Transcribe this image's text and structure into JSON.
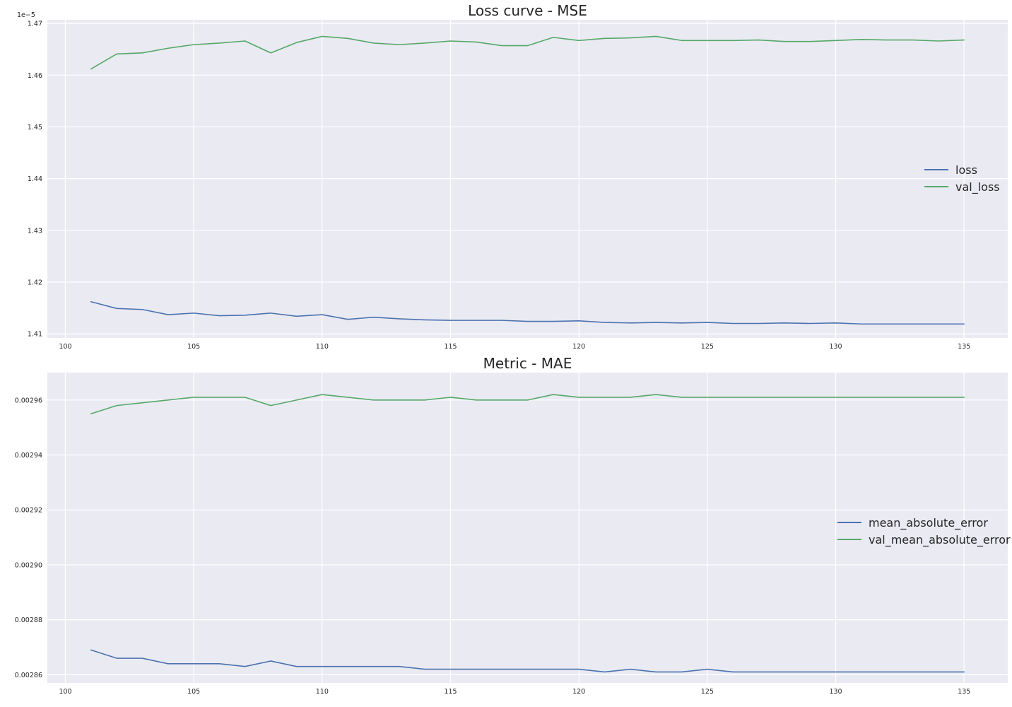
{
  "colors": {
    "loss": "#4c72b0",
    "val": "#55a868",
    "plot_bg": "#eaeaf2",
    "grid": "#ffffff"
  },
  "chart_data": [
    {
      "type": "line",
      "title": "Loss curve - MSE",
      "xlabel": "",
      "ylabel": "",
      "offset_label": "1e−5",
      "xlim": [
        99.3,
        136.7
      ],
      "ylim": [
        1.4092,
        1.4707
      ],
      "x_ticks": [
        100,
        105,
        110,
        115,
        120,
        125,
        130,
        135
      ],
      "y_ticks": [
        1.41,
        1.42,
        1.43,
        1.44,
        1.45,
        1.46,
        1.47
      ],
      "y_tick_labels": [
        "1.41",
        "1.42",
        "1.43",
        "1.44",
        "1.45",
        "1.46",
        "1.47"
      ],
      "grid": true,
      "legend_position": "center-right",
      "x": [
        101,
        102,
        103,
        104,
        105,
        106,
        107,
        108,
        109,
        110,
        111,
        112,
        113,
        114,
        115,
        116,
        117,
        118,
        119,
        120,
        121,
        122,
        123,
        124,
        125,
        126,
        127,
        128,
        129,
        130,
        131,
        132,
        133,
        134,
        135
      ],
      "series": [
        {
          "name": "loss",
          "color_key": "loss",
          "values": [
            1.4162,
            1.4149,
            1.4147,
            1.4137,
            1.414,
            1.4135,
            1.4136,
            1.414,
            1.4134,
            1.4137,
            1.4128,
            1.4132,
            1.4129,
            1.4127,
            1.4126,
            1.4126,
            1.4126,
            1.4124,
            1.4124,
            1.4125,
            1.4122,
            1.4121,
            1.4122,
            1.4121,
            1.4122,
            1.412,
            1.412,
            1.4121,
            1.412,
            1.4121,
            1.4119,
            1.4119,
            1.4119,
            1.4119,
            1.4119
          ]
        },
        {
          "name": "val_loss",
          "color_key": "val",
          "values": [
            1.4612,
            1.4641,
            1.4643,
            1.4652,
            1.4659,
            1.4662,
            1.4666,
            1.4643,
            1.4663,
            1.4675,
            1.4671,
            1.4662,
            1.4659,
            1.4662,
            1.4666,
            1.4664,
            1.4657,
            1.4657,
            1.4673,
            1.4667,
            1.4671,
            1.4672,
            1.4675,
            1.4667,
            1.4667,
            1.4667,
            1.4668,
            1.4665,
            1.4665,
            1.4667,
            1.4669,
            1.4668,
            1.4668,
            1.4666,
            1.4668
          ]
        }
      ]
    },
    {
      "type": "line",
      "title": "Metric - MAE",
      "xlabel": "",
      "ylabel": "",
      "offset_label": "",
      "xlim": [
        99.3,
        136.7
      ],
      "ylim": [
        0.002857,
        0.00297
      ],
      "x_ticks": [
        100,
        105,
        110,
        115,
        120,
        125,
        130,
        135
      ],
      "y_ticks": [
        0.00286,
        0.00288,
        0.0029,
        0.00292,
        0.00294,
        0.00296
      ],
      "y_tick_labels": [
        "0.00286",
        "0.00288",
        "0.00290",
        "0.00292",
        "0.00294",
        "0.00296"
      ],
      "grid": true,
      "legend_position": "center-right",
      "x": [
        101,
        102,
        103,
        104,
        105,
        106,
        107,
        108,
        109,
        110,
        111,
        112,
        113,
        114,
        115,
        116,
        117,
        118,
        119,
        120,
        121,
        122,
        123,
        124,
        125,
        126,
        127,
        128,
        129,
        130,
        131,
        132,
        133,
        134,
        135
      ],
      "series": [
        {
          "name": "mean_absolute_error",
          "color_key": "loss",
          "values": [
            0.002869,
            0.002866,
            0.002866,
            0.002864,
            0.002864,
            0.002864,
            0.002863,
            0.002865,
            0.002863,
            0.002863,
            0.002863,
            0.002863,
            0.002863,
            0.002862,
            0.002862,
            0.002862,
            0.002862,
            0.002862,
            0.002862,
            0.002862,
            0.002861,
            0.002862,
            0.002861,
            0.002861,
            0.002862,
            0.002861,
            0.002861,
            0.002861,
            0.002861,
            0.002861,
            0.002861,
            0.002861,
            0.002861,
            0.002861,
            0.002861
          ]
        },
        {
          "name": "val_mean_absolute_error",
          "color_key": "val",
          "values": [
            0.002955,
            0.002958,
            0.002959,
            0.00296,
            0.002961,
            0.002961,
            0.002961,
            0.002958,
            0.00296,
            0.002962,
            0.002961,
            0.00296,
            0.00296,
            0.00296,
            0.002961,
            0.00296,
            0.00296,
            0.00296,
            0.002962,
            0.002961,
            0.002961,
            0.002961,
            0.002962,
            0.002961,
            0.002961,
            0.002961,
            0.002961,
            0.002961,
            0.002961,
            0.002961,
            0.002961,
            0.002961,
            0.002961,
            0.002961,
            0.002961
          ]
        }
      ]
    }
  ]
}
